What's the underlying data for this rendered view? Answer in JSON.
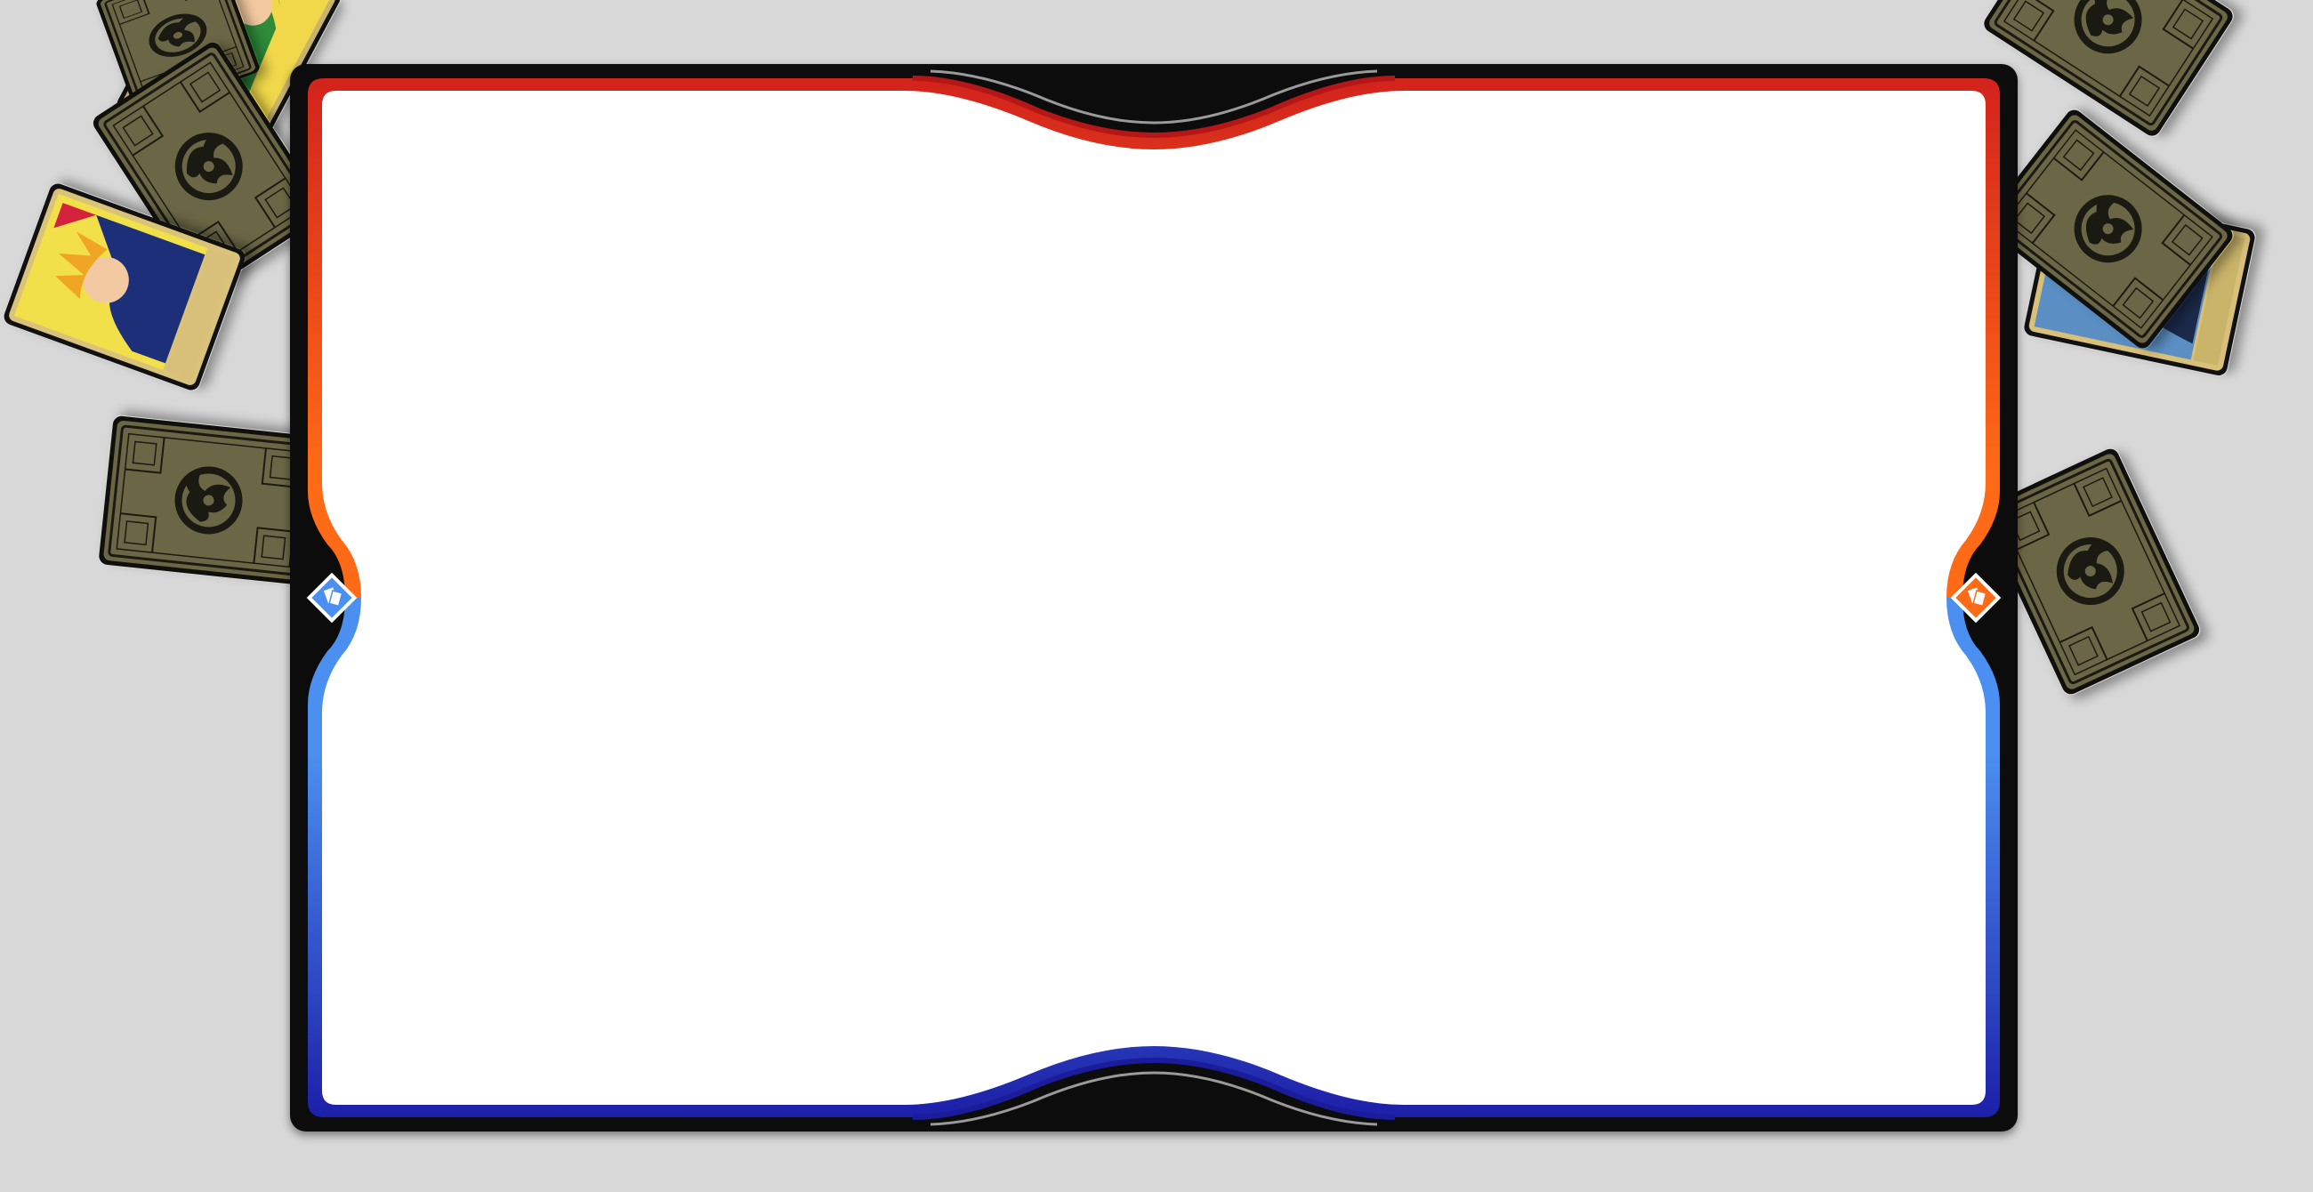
{
  "colors": {
    "background": "#d8d8d8",
    "frame": "#0c0c0c",
    "player1": "#c51c1c",
    "player1_side": "#ff5a14",
    "player2": "#1d1fa8",
    "player2_side": "#4b8ff0",
    "playmat": "#ffffff",
    "card_back": "#6b6746",
    "card_back_ink": "#1a1a12"
  },
  "board": {
    "playmat_empty": true,
    "left_turn_indicator_icon": "cards-icon",
    "right_turn_indicator_icon": "cards-icon"
  },
  "piles": {
    "left": [
      {
        "type": "face-up",
        "art": "green-character-art"
      },
      {
        "type": "face-down",
        "icon": "dragon-emblem-icon"
      },
      {
        "type": "face-down",
        "icon": "dragon-emblem-icon"
      },
      {
        "type": "face-up",
        "art": "blonde-fighter-art"
      },
      {
        "type": "face-down",
        "icon": "dragon-emblem-icon"
      }
    ],
    "right": [
      {
        "type": "face-down",
        "icon": "dragon-emblem-icon"
      },
      {
        "type": "face-up",
        "art": "blue-character-art"
      },
      {
        "type": "face-down",
        "icon": "dragon-emblem-icon"
      },
      {
        "type": "face-down",
        "icon": "dragon-emblem-icon"
      }
    ]
  }
}
